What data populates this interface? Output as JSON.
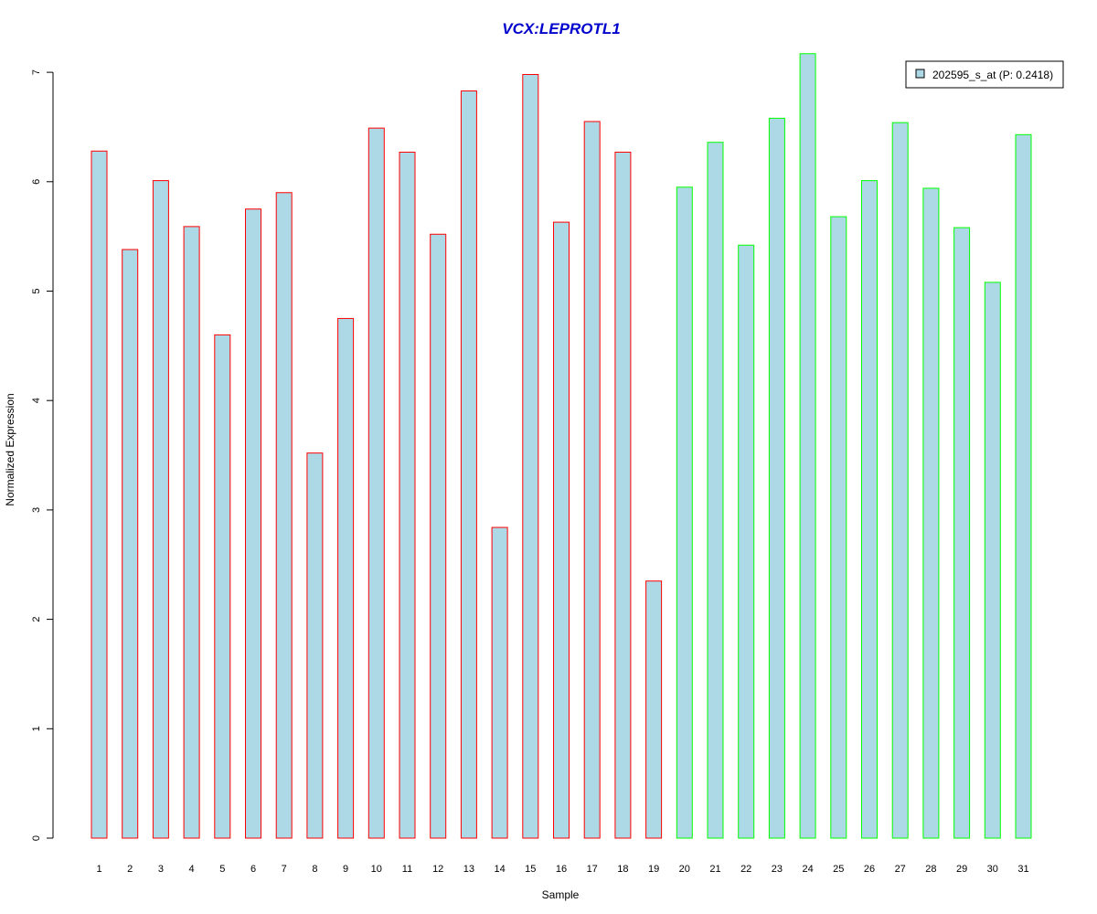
{
  "chart_data": {
    "type": "bar",
    "title": "VCX:LEPROTL1",
    "xlabel": "Sample",
    "ylabel": "Normalized Expression",
    "ylim": [
      0,
      7.2
    ],
    "yticks": [
      "0",
      "1",
      "2",
      "3",
      "4",
      "5",
      "6",
      "7"
    ],
    "categories": [
      "1",
      "2",
      "3",
      "4",
      "5",
      "6",
      "7",
      "8",
      "9",
      "10",
      "11",
      "12",
      "13",
      "14",
      "15",
      "16",
      "17",
      "18",
      "19",
      "20",
      "21",
      "22",
      "23",
      "24",
      "25",
      "26",
      "27",
      "28",
      "29",
      "30",
      "31"
    ],
    "series": [
      {
        "name": "202595_s_at (P: 0.2418)",
        "values": [
          6.28,
          5.38,
          6.01,
          5.59,
          4.6,
          5.75,
          5.9,
          3.52,
          4.75,
          6.49,
          6.27,
          5.52,
          6.83,
          2.84,
          6.98,
          5.63,
          6.55,
          6.27,
          2.35,
          5.95,
          6.36,
          5.42,
          6.58,
          7.17,
          5.68,
          6.01,
          6.54,
          5.94,
          5.58,
          5.08,
          6.43
        ]
      }
    ],
    "groups": [
      "A",
      "A",
      "A",
      "A",
      "A",
      "A",
      "A",
      "A",
      "A",
      "A",
      "A",
      "A",
      "A",
      "A",
      "A",
      "A",
      "A",
      "A",
      "A",
      "B",
      "B",
      "B",
      "B",
      "B",
      "B",
      "B",
      "B",
      "B",
      "B",
      "B",
      "B"
    ],
    "legend_position": "top-right",
    "grid": false
  },
  "colors": {
    "bar_fill": "#add8e6",
    "group_A_border": "#ff0000",
    "group_B_border": "#00ff00",
    "title": "#0000cd",
    "axis": "#000000"
  }
}
